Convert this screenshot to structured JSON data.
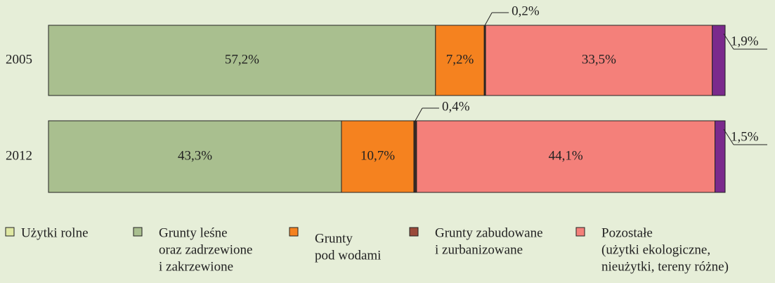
{
  "chart_data": {
    "type": "stacked-bar-horizontal",
    "categories": [
      "2005",
      "2012"
    ],
    "xlim": [
      0,
      100
    ],
    "series": [
      {
        "color": "#a9bf8f",
        "values": [
          57.2,
          43.3
        ],
        "value_labels": [
          "57,2%",
          "43,3%"
        ]
      },
      {
        "color": "#f5821f",
        "values": [
          7.2,
          10.7
        ],
        "value_labels": [
          "7,2%",
          "10,7%"
        ]
      },
      {
        "color": "#3a2a26",
        "values": [
          0.2,
          0.4
        ],
        "value_labels": [
          "0,2%",
          "0,4%"
        ]
      },
      {
        "color": "#f4807a",
        "values": [
          33.5,
          44.1
        ],
        "value_labels": [
          "33,5%",
          "44,1%"
        ]
      },
      {
        "color": "#7b2a8c",
        "values": [
          1.9,
          1.5
        ],
        "value_labels": [
          "1,9%",
          "1,5%"
        ]
      }
    ],
    "legend": [
      {
        "color": "#dfe8a3",
        "label": [
          "Użytki rolne"
        ]
      },
      {
        "color": "#a9bf8f",
        "label": [
          "Grunty leśne",
          "oraz zadrzewione",
          "i zakrzewione"
        ]
      },
      {
        "color": "#f5821f",
        "label": [
          "Grunty",
          "pod wodami"
        ]
      },
      {
        "color": "#9a4a3a",
        "label": [
          "Grunty zabudowane",
          "i zurbanizowane"
        ]
      },
      {
        "color": "#f4807a",
        "label": [
          "Pozostałe",
          "(użytki ekologiczne,",
          "nieużytki, tereny różne)"
        ]
      }
    ]
  }
}
